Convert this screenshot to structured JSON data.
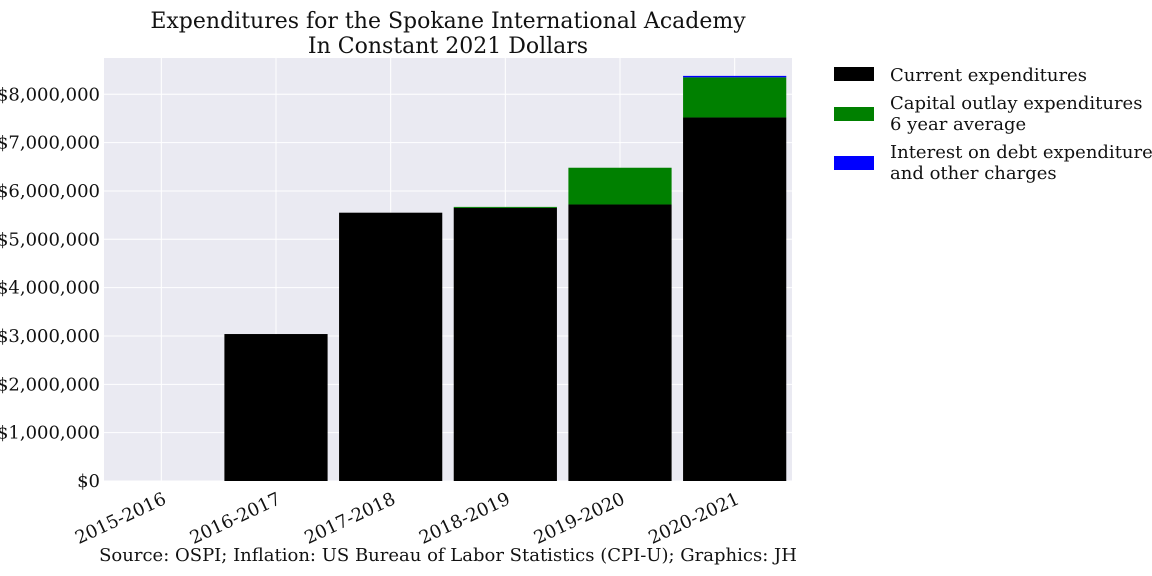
{
  "chart_data": {
    "type": "bar",
    "stacked": true,
    "title": "Expenditures for the Spokane International Academy",
    "subtitle": "In Constant 2021 Dollars",
    "xlabel": "",
    "ylabel": "",
    "categories": [
      "2015-2016",
      "2016-2017",
      "2017-2018",
      "2018-2019",
      "2019-2020",
      "2020-2021"
    ],
    "series": [
      {
        "name": "Current expenditures",
        "color": "#000000",
        "values": [
          0,
          3040000,
          5550000,
          5650000,
          5720000,
          7520000
        ]
      },
      {
        "name": "Capital outlay expenditures 6 year average",
        "color": "#008000",
        "values": [
          0,
          0,
          0,
          20000,
          760000,
          830000
        ]
      },
      {
        "name": "Interest on debt expenditures and other charges",
        "color": "#0000ff",
        "values": [
          0,
          0,
          0,
          0,
          0,
          30000
        ]
      }
    ],
    "ylim": [
      0,
      8750000
    ],
    "yticks": [
      0,
      1000000,
      2000000,
      3000000,
      4000000,
      5000000,
      6000000,
      7000000,
      8000000
    ],
    "ytick_labels": [
      "$0",
      "$1,000,000",
      "$2,000,000",
      "$3,000,000",
      "$4,000,000",
      "$5,000,000",
      "$6,000,000",
      "$7,000,000",
      "$8,000,000"
    ],
    "grid": true,
    "legend": {
      "placement": "outside-right-top",
      "entries": [
        {
          "lines": [
            "Current expenditures"
          ],
          "color": "#000000"
        },
        {
          "lines": [
            "Capital outlay expenditures",
            "6 year average"
          ],
          "color": "#008000"
        },
        {
          "lines": [
            "Interest on debt expenditures",
            "and other charges"
          ],
          "color": "#0000ff"
        }
      ]
    },
    "source": "Source: OSPI; Inflation: US Bureau of Labor Statistics (CPI-U); Graphics: JH"
  },
  "colors": {
    "plot_background": "#eaeaf2",
    "grid": "#ffffff"
  }
}
